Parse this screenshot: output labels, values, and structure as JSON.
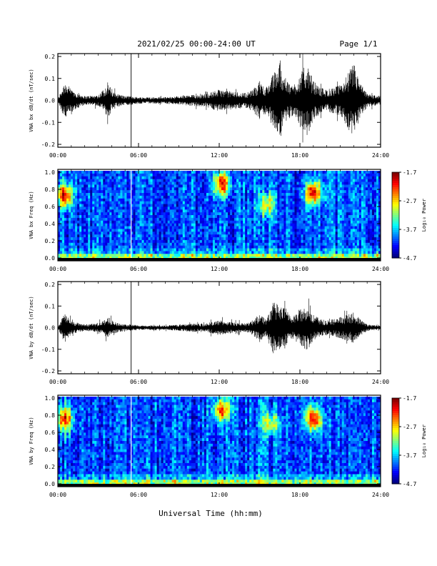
{
  "header": {
    "title": "2021/02/25  00:00-24:00 UT",
    "page": "Page 1/1"
  },
  "footer": {
    "xlabel": "Universal Time (hh:mm)"
  },
  "chart_data": [
    {
      "type": "line",
      "ylabel": "VNA bx dB/dt (nT/sec)",
      "xlim": [
        0,
        24
      ],
      "ylim": [
        -0.2,
        0.2
      ],
      "xticks": [
        "00:00",
        "06:00",
        "12:00",
        "18:00",
        "24:00"
      ],
      "yticks": [
        "0.2",
        "0.1",
        "0.0",
        "-0.1",
        "-0.2"
      ],
      "envelope": {
        "hours": [
          0,
          0.5,
          1,
          2,
          3,
          3.8,
          4,
          5,
          5.5,
          6,
          8,
          10,
          11,
          12,
          13,
          14,
          14.5,
          15,
          15.5,
          16,
          16.5,
          17,
          17.5,
          18,
          18.5,
          19,
          19.5,
          20,
          21,
          22,
          22.5,
          23,
          24
        ],
        "amplitude": [
          0.005,
          0.09,
          0.05,
          0.02,
          0.025,
          0.08,
          0.04,
          0.02,
          0.02,
          0.015,
          0.015,
          0.025,
          0.03,
          0.05,
          0.04,
          0.035,
          0.05,
          0.09,
          0.06,
          0.12,
          0.18,
          0.09,
          0.07,
          0.12,
          0.17,
          0.09,
          0.06,
          0.05,
          0.07,
          0.17,
          0.08,
          0.03,
          0.02
        ]
      }
    },
    {
      "type": "heatmap",
      "ylabel": "VNA bx Freq (Hz)",
      "colorbar_label": "Log₁₀ Power",
      "colorbar_ticks": [
        "-1.7",
        "-2.7",
        "-3.7",
        "-4.7"
      ],
      "xlim": [
        0,
        24
      ],
      "ylim": [
        0,
        1.0
      ],
      "xticks": [
        "00:00",
        "06:00",
        "12:00",
        "18:00",
        "24:00"
      ],
      "yticks": [
        "1.0",
        "0.8",
        "0.6",
        "0.4",
        "0.2",
        "0.0"
      ],
      "hotspots": [
        {
          "hour": 0.5,
          "freq": 0.72,
          "power": 0.95
        },
        {
          "hour": 12.2,
          "freq": 0.85,
          "power": 0.9
        },
        {
          "hour": 15.5,
          "freq": 0.62,
          "power": 0.6
        },
        {
          "hour": 19.0,
          "freq": 0.75,
          "power": 0.95
        }
      ]
    },
    {
      "type": "line",
      "ylabel": "VNA by dB/dt (nT/sec)",
      "xlim": [
        0,
        24
      ],
      "ylim": [
        -0.2,
        0.2
      ],
      "xticks": [
        "00:00",
        "06:00",
        "12:00",
        "18:00",
        "24:00"
      ],
      "yticks": [
        "0.2",
        "0.1",
        "0.0",
        "-0.1",
        "-0.2"
      ],
      "envelope": {
        "hours": [
          0,
          0.5,
          1,
          2,
          3,
          3.8,
          4,
          5,
          5.5,
          6,
          8,
          10,
          11,
          12,
          13,
          14,
          14.5,
          15,
          15.5,
          16,
          16.5,
          17,
          17.5,
          18,
          18.5,
          19,
          19.5,
          20,
          21,
          22,
          22.5,
          23,
          24
        ],
        "amplitude": [
          0.005,
          0.07,
          0.03,
          0.015,
          0.02,
          0.05,
          0.03,
          0.015,
          0.015,
          0.01,
          0.01,
          0.02,
          0.02,
          0.035,
          0.025,
          0.02,
          0.035,
          0.07,
          0.04,
          0.12,
          0.1,
          0.09,
          0.05,
          0.09,
          0.11,
          0.06,
          0.04,
          0.035,
          0.05,
          0.07,
          0.04,
          0.015,
          0.01
        ]
      }
    },
    {
      "type": "heatmap",
      "ylabel": "VNA by Freq (Hz)",
      "colorbar_label": "Log₁₀ Power",
      "colorbar_ticks": [
        "-1.7",
        "-2.7",
        "-3.7",
        "-4.7"
      ],
      "xlim": [
        0,
        24
      ],
      "ylim": [
        0,
        1.0
      ],
      "xticks": [
        "00:00",
        "06:00",
        "12:00",
        "18:00",
        "24:00"
      ],
      "yticks": [
        "1.0",
        "0.8",
        "0.6",
        "0.4",
        "0.2",
        "0.0"
      ],
      "hotspots": [
        {
          "hour": 0.5,
          "freq": 0.75,
          "power": 0.9
        },
        {
          "hour": 12.2,
          "freq": 0.85,
          "power": 0.85
        },
        {
          "hour": 15.8,
          "freq": 0.7,
          "power": 0.55
        },
        {
          "hour": 19.0,
          "freq": 0.75,
          "power": 0.95
        }
      ]
    }
  ]
}
